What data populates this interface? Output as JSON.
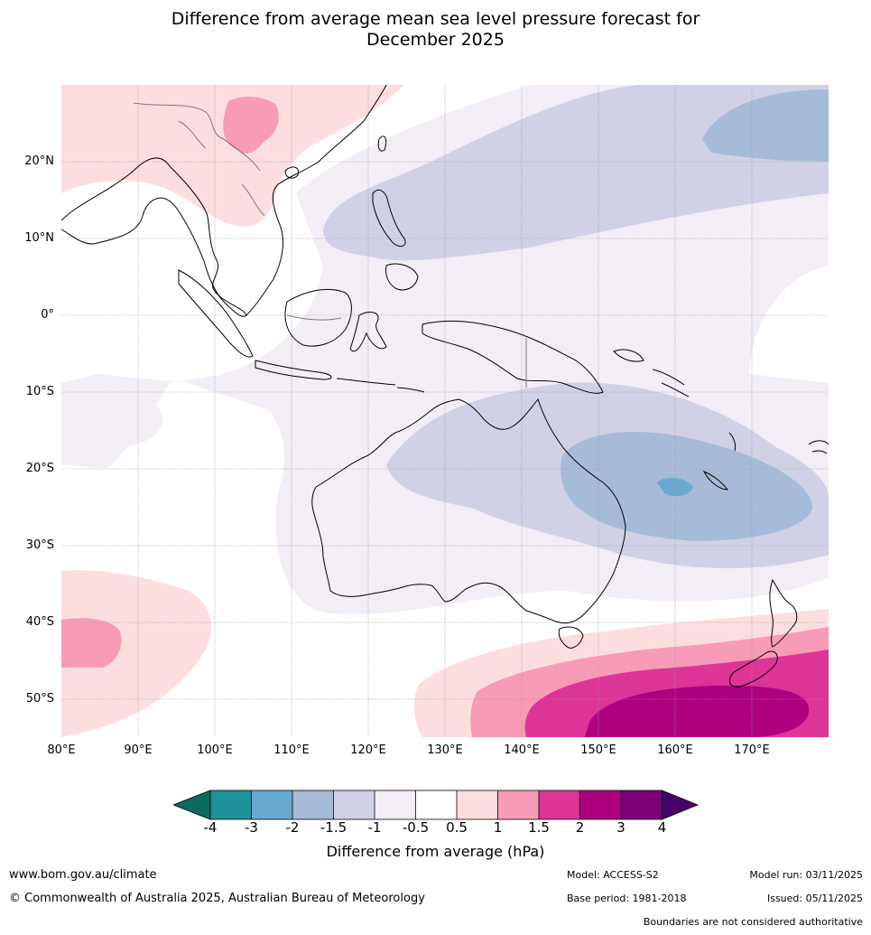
{
  "title_line1": "Difference from average mean sea level pressure forecast for",
  "title_line2": "December 2025",
  "map": {
    "lat_labels": [
      "20°N",
      "10°N",
      "0°",
      "10°S",
      "20°S",
      "30°S",
      "40°S",
      "50°S"
    ],
    "lon_labels": [
      "80°E",
      "90°E",
      "100°E",
      "110°E",
      "120°E",
      "130°E",
      "140°E",
      "150°E",
      "160°E",
      "170°E"
    ],
    "colors": {
      "neg4": "#0d6b5e",
      "neg3_4": "#1f9198",
      "neg2_3": "#68a9cf",
      "neg1_5_2": "#a6bbd9",
      "neg1_1_5": "#d0d1e6",
      "neg0_5_1": "#f3edf6",
      "neutral": "#ffffff",
      "pos0_5_1": "#fddedf",
      "pos1_1_5": "#f89bb6",
      "pos1_5_2": "#dd3497",
      "pos2_3": "#ae017e",
      "pos3_4": "#7a0177",
      "pos4": "#49006a"
    }
  },
  "colorbar": {
    "ticks": [
      "-4",
      "-3",
      "-2",
      "-1.5",
      "-1",
      "-0.5",
      "0.5",
      "1",
      "1.5",
      "2",
      "3",
      "4"
    ],
    "label": "Difference from average (hPa)"
  },
  "footer": {
    "website": "www.bom.gov.au/climate",
    "copyright": "© Commonwealth of Australia 2025, Australian Bureau of Meteorology",
    "model": "Model: ACCESS-S2",
    "base_period": "Base period: 1981-2018",
    "model_run": "Model run: 03/11/2025",
    "issued": "Issued: 05/11/2025",
    "disclaimer": "Boundaries are not considered authoritative"
  }
}
